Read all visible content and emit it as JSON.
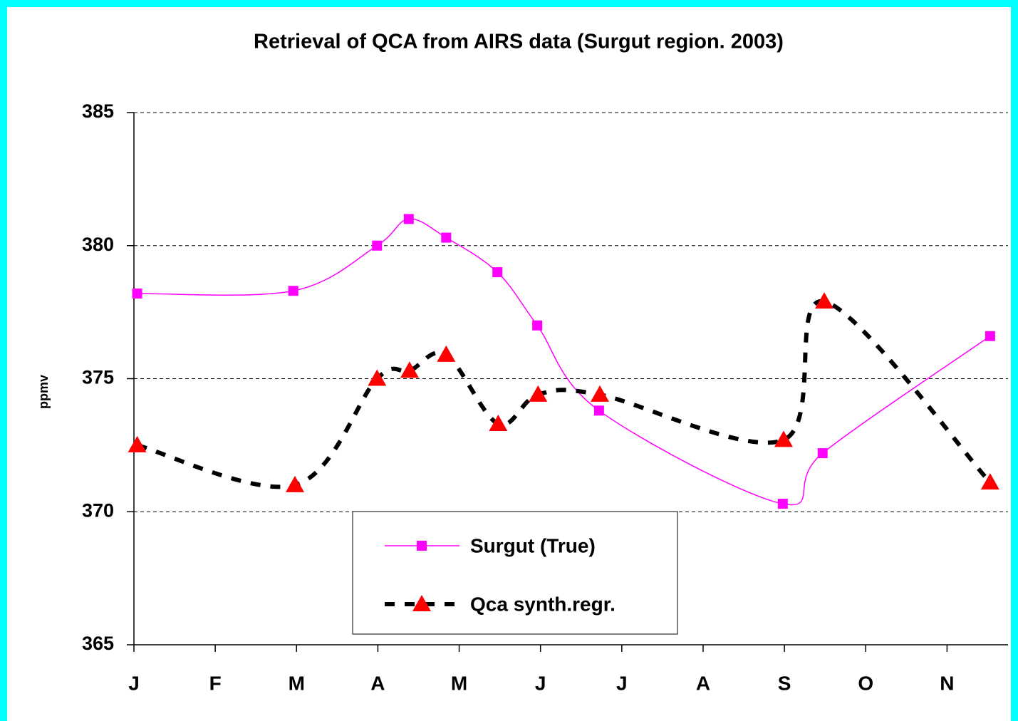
{
  "chart_data": {
    "type": "line",
    "title": "Retrieval of QCA from AIRS data (Surgut region. 2003)",
    "y_label": "ppmv",
    "xlim": [
      0,
      10.75
    ],
    "xticks": [
      {
        "value": 0,
        "label": "J"
      },
      {
        "value": 1,
        "label": "F"
      },
      {
        "value": 2,
        "label": "M"
      },
      {
        "value": 3,
        "label": "A"
      },
      {
        "value": 4,
        "label": "M"
      },
      {
        "value": 5,
        "label": "J"
      },
      {
        "value": 6,
        "label": "J"
      },
      {
        "value": 7,
        "label": "A"
      },
      {
        "value": 8,
        "label": "S"
      },
      {
        "value": 9,
        "label": "O"
      },
      {
        "value": 10,
        "label": "N"
      }
    ],
    "ylim": [
      365,
      385
    ],
    "yticks": [
      365,
      370,
      375,
      380,
      385
    ],
    "grid": true,
    "series": [
      {
        "name": "Surgut (True)",
        "color": "#ff00ff",
        "marker": "square",
        "dash": false,
        "x": [
          0.04,
          1.96,
          2.99,
          3.38,
          3.84,
          4.47,
          4.96,
          5.72,
          7.98,
          8.47,
          10.53
        ],
        "values": [
          378.2,
          378.3,
          380.0,
          381.0,
          380.3,
          379.0,
          377.0,
          373.8,
          370.3,
          372.2,
          376.6
        ]
      },
      {
        "name": "Qca synth.regr.",
        "color": "#ff0000",
        "line_color": "#000000",
        "marker": "triangle",
        "dash": true,
        "x": [
          0.04,
          1.98,
          2.99,
          3.39,
          3.84,
          4.48,
          4.97,
          5.73,
          7.99,
          8.49,
          10.53
        ],
        "values": [
          372.5,
          371.0,
          375.0,
          375.3,
          375.9,
          373.3,
          374.4,
          374.4,
          372.7,
          377.9,
          371.1
        ]
      }
    ]
  }
}
